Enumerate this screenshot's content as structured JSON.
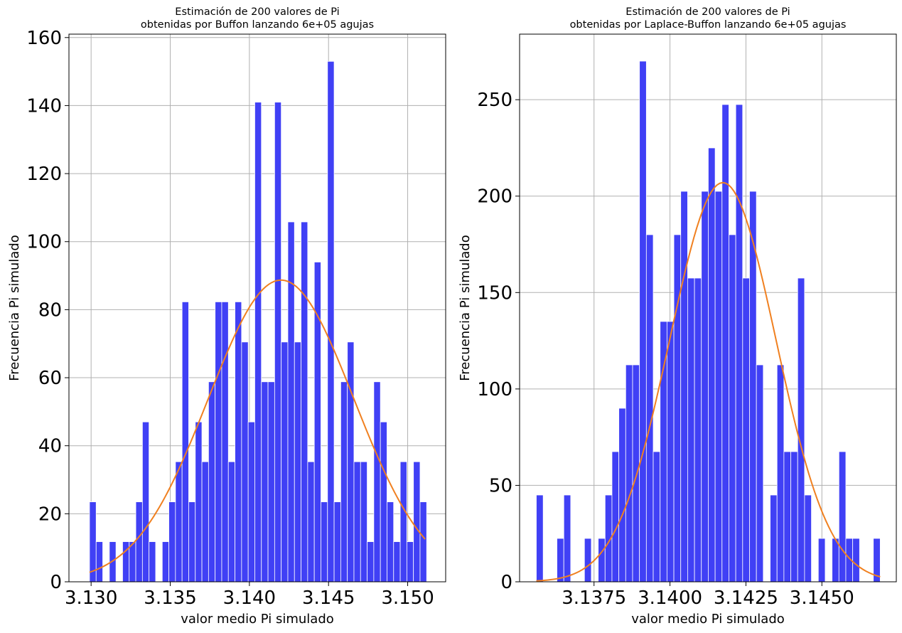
{
  "chart_data": [
    {
      "type": "bar",
      "title_line1": "Estimación de 200 valores de Pi",
      "title_line2": "obtenidas por Buffon lanzando 6e+05 agujas",
      "xlabel": "valor medio Pi simulado",
      "ylabel": "Frecuencia Pi simulado",
      "xlim": [
        3.1286,
        3.1524
      ],
      "ylim": [
        0,
        161
      ],
      "xticks": [
        3.13,
        3.135,
        3.14,
        3.145,
        3.15
      ],
      "xtick_labels": [
        "3.130",
        "3.135",
        "3.140",
        "3.145",
        "3.150"
      ],
      "yticks": [
        0,
        20,
        40,
        60,
        80,
        100,
        120,
        140,
        160
      ],
      "ytick_labels": [
        "0",
        "20",
        "40",
        "60",
        "80",
        "100",
        "120",
        "140",
        "160"
      ],
      "grid": true,
      "bins": {
        "start": 3.1299,
        "end": 3.1512,
        "values": [
          23.5,
          11.8,
          0,
          11.8,
          0,
          11.8,
          11.8,
          23.5,
          47,
          11.8,
          0,
          11.8,
          23.5,
          35.3,
          82.3,
          23.5,
          47,
          35.3,
          58.8,
          82.3,
          82.3,
          35.3,
          82.3,
          70.5,
          47,
          141,
          58.8,
          58.8,
          141,
          70.5,
          105.8,
          70.5,
          105.8,
          35.3,
          94,
          23.5,
          153,
          23.5,
          58.8,
          70.5,
          35.3,
          35.3,
          11.8,
          58.8,
          47,
          23.5,
          11.8,
          35.3,
          11.8,
          35.3,
          23.5
        ]
      },
      "fit_curve": {
        "type": "normal",
        "mean": 3.142,
        "std": 0.0046,
        "peak": 88.7,
        "x_range": [
          3.1299,
          3.1511
        ]
      }
    },
    {
      "type": "bar",
      "title_line1": "Estimación de 200 valores de Pi",
      "title_line2": "obtenidas por Laplace-Buffon lanzando 6e+05 agujas",
      "xlabel": "valor medio Pi simulado",
      "ylabel": "Frecuencia Pi simulado",
      "xlim": [
        3.13505,
        3.14745
      ],
      "ylim": [
        0,
        284
      ],
      "xticks": [
        3.1375,
        3.14,
        3.1425,
        3.145
      ],
      "xtick_labels": [
        "3.1375",
        "3.1400",
        "3.1425",
        "3.1450"
      ],
      "yticks": [
        0,
        50,
        100,
        150,
        200,
        250
      ],
      "ytick_labels": [
        "0",
        "50",
        "100",
        "150",
        "200",
        "250"
      ],
      "grid": true,
      "bins": {
        "start": 3.1356,
        "end": 3.14692,
        "values": [
          45,
          0,
          0,
          22.5,
          45,
          0,
          0,
          22.5,
          0,
          22.5,
          45,
          67.5,
          90,
          112.5,
          112.5,
          270,
          180,
          67.5,
          135,
          135,
          180,
          202.5,
          157.5,
          157.5,
          202.5,
          225,
          202.5,
          247.5,
          180,
          247.5,
          157.5,
          202.5,
          112.5,
          0,
          45,
          112.5,
          67.5,
          67.5,
          157.5,
          45,
          0,
          22.5,
          0,
          22.5,
          67.5,
          22.5,
          22.5,
          0,
          0,
          22.5
        ]
      },
      "fit_curve": {
        "type": "normal",
        "mean": 3.14174,
        "std": 0.00175,
        "peak": 207,
        "x_range": [
          3.1356,
          3.14692
        ]
      }
    }
  ]
}
